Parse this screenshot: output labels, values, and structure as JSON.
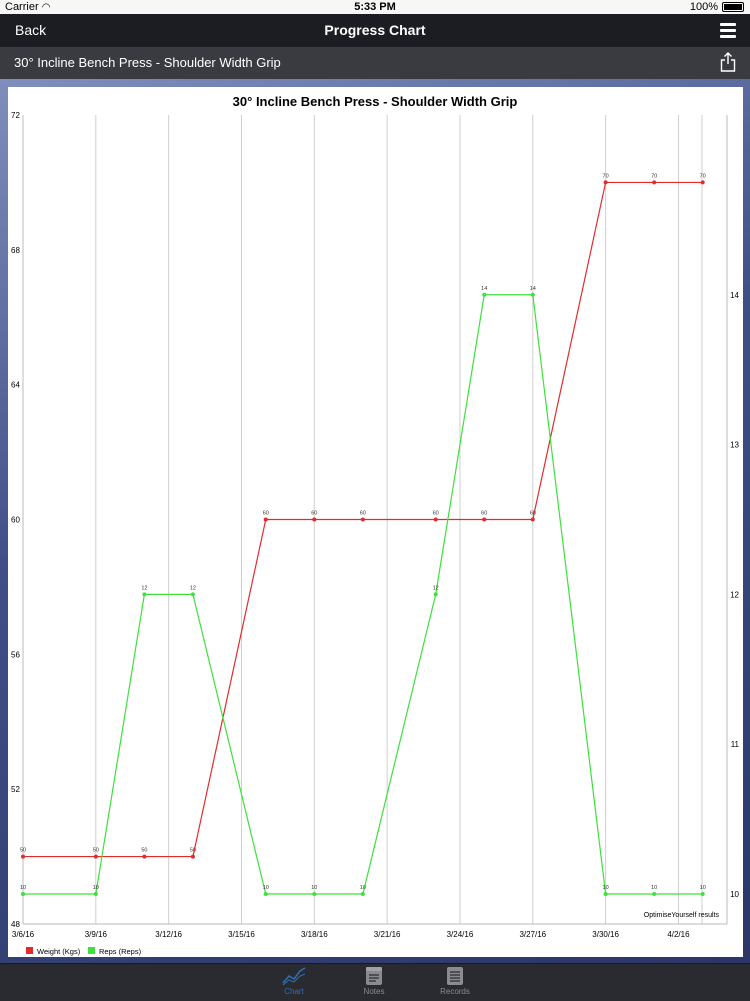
{
  "status_bar": {
    "carrier": "Carrier",
    "time": "5:33 PM",
    "battery": "100%"
  },
  "nav": {
    "back_label": "Back",
    "title": "Progress Chart"
  },
  "sub_header": {
    "exercise_name": "30° Incline Bench Press - Shoulder Width Grip"
  },
  "tabs": [
    {
      "label": "Chart"
    },
    {
      "label": "Notes"
    },
    {
      "label": "Records"
    }
  ],
  "colors": {
    "weight": "#e32b2b",
    "reps": "#3ee03e",
    "active_tab": "#2f6db5"
  },
  "chart_data": {
    "type": "line",
    "title": "30° Incline Bench Press - Shoulder Width Grip",
    "watermark": "OptimiseYourself results",
    "x_tick_labels": [
      "3/6/16",
      "3/9/16",
      "3/12/16",
      "3/15/16",
      "3/18/16",
      "3/21/16",
      "3/24/16",
      "3/27/16",
      "3/30/16",
      "4/2/16"
    ],
    "xlim": [
      "2016-03-06",
      "2016-04-04"
    ],
    "y_left": {
      "ticks": [
        48,
        52,
        56,
        60,
        64,
        68,
        72
      ],
      "ylim": [
        48,
        72
      ]
    },
    "y_right": {
      "ticks": [
        10,
        11,
        12,
        13,
        14
      ],
      "ylim": [
        9.8,
        15.2
      ]
    },
    "grid": "vertical",
    "legend_position": "bottom-left",
    "series": [
      {
        "name": "Weight (Kgs)",
        "axis": "left",
        "color": "#e32b2b",
        "points": [
          {
            "x": "2016-03-06",
            "y": 50,
            "label": "50"
          },
          {
            "x": "2016-03-09",
            "y": 50,
            "label": "50"
          },
          {
            "x": "2016-03-11",
            "y": 50,
            "label": "50"
          },
          {
            "x": "2016-03-13",
            "y": 50,
            "label": "50"
          },
          {
            "x": "2016-03-16",
            "y": 60,
            "label": "60"
          },
          {
            "x": "2016-03-18",
            "y": 60,
            "label": "60"
          },
          {
            "x": "2016-03-20",
            "y": 60,
            "label": "60"
          },
          {
            "x": "2016-03-23",
            "y": 60,
            "label": "60"
          },
          {
            "x": "2016-03-25",
            "y": 60,
            "label": "60"
          },
          {
            "x": "2016-03-27",
            "y": 60,
            "label": "60"
          },
          {
            "x": "2016-03-30",
            "y": 70,
            "label": "70"
          },
          {
            "x": "2016-04-01",
            "y": 70,
            "label": "70"
          },
          {
            "x": "2016-04-03",
            "y": 70,
            "label": "70"
          }
        ]
      },
      {
        "name": "Reps (Reps)",
        "axis": "right",
        "color": "#3ee03e",
        "points": [
          {
            "x": "2016-03-06",
            "y": 10,
            "label": "10"
          },
          {
            "x": "2016-03-09",
            "y": 10,
            "label": "10"
          },
          {
            "x": "2016-03-11",
            "y": 12,
            "label": "12"
          },
          {
            "x": "2016-03-13",
            "y": 12,
            "label": "12"
          },
          {
            "x": "2016-03-16",
            "y": 10,
            "label": "10"
          },
          {
            "x": "2016-03-18",
            "y": 10,
            "label": "10"
          },
          {
            "x": "2016-03-20",
            "y": 10,
            "label": "10"
          },
          {
            "x": "2016-03-23",
            "y": 12,
            "label": "12"
          },
          {
            "x": "2016-03-25",
            "y": 14,
            "label": "14"
          },
          {
            "x": "2016-03-27",
            "y": 14,
            "label": "14"
          },
          {
            "x": "2016-03-30",
            "y": 10,
            "label": "10"
          },
          {
            "x": "2016-04-01",
            "y": 10,
            "label": "10"
          },
          {
            "x": "2016-04-03",
            "y": 10,
            "label": "10"
          }
        ]
      }
    ]
  }
}
